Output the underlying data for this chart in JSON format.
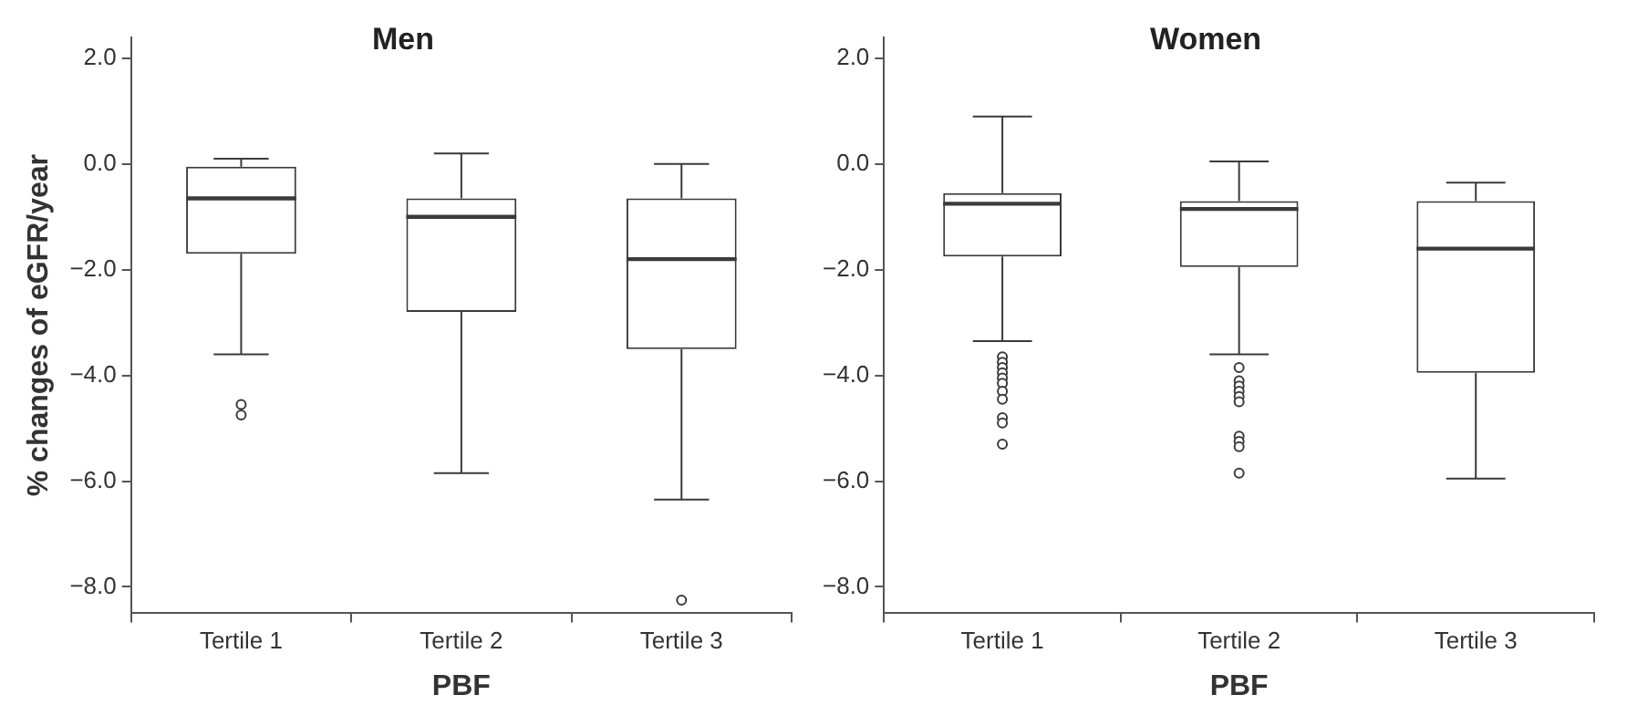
{
  "chart_data": [
    {
      "type": "box",
      "title": "Men",
      "xlabel": "PBF",
      "ylabel": "% changes of eGFR/year",
      "categories": [
        "Tertile 1",
        "Tertile 2",
        "Tertile 3"
      ],
      "ylim": [
        -8.5,
        2.4
      ],
      "yticks": [
        {
          "value": 2,
          "label": "2.0"
        },
        {
          "value": 0,
          "label": "0.0"
        },
        {
          "value": -2,
          "label": "−2.0"
        },
        {
          "value": -4,
          "label": "−4.0"
        },
        {
          "value": -6,
          "label": "−6.0"
        },
        {
          "value": -8,
          "label": "−8.0"
        }
      ],
      "grid": false,
      "legend": false,
      "marker": "circle",
      "color": "#3a3a3a",
      "boxes": [
        {
          "low": -3.6,
          "q1": -1.7,
          "median": -0.65,
          "q3": -0.05,
          "high": 0.1,
          "outliers": [
            -4.55,
            -4.75
          ]
        },
        {
          "low": -5.85,
          "q1": -2.8,
          "median": -1.0,
          "q3": -0.65,
          "high": 0.2
        },
        {
          "low": -6.35,
          "q1": -3.5,
          "median": -1.8,
          "q3": -0.65,
          "high": 0.0,
          "outliers": [
            -8.25
          ]
        }
      ]
    },
    {
      "type": "box",
      "title": "Women",
      "xlabel": "PBF",
      "categories": [
        "Tertile 1",
        "Tertile 2",
        "Tertile 3"
      ],
      "ylim": [
        -8.5,
        2.4
      ],
      "yticks": [
        {
          "value": 2,
          "label": "2.0"
        },
        {
          "value": 0,
          "label": "0.0"
        },
        {
          "value": -2,
          "label": "−2.0"
        },
        {
          "value": -4,
          "label": "−4.0"
        },
        {
          "value": -6,
          "label": "−6.0"
        },
        {
          "value": -8,
          "label": "−8.0"
        }
      ],
      "grid": false,
      "legend": false,
      "marker": "circle",
      "color": "#3a3a3a",
      "boxes": [
        {
          "low": -3.35,
          "q1": -1.75,
          "median": -0.75,
          "q3": -0.55,
          "high": 0.9,
          "outliers": [
            -3.65,
            -3.75,
            -3.85,
            -3.95,
            -4.05,
            -4.15,
            -4.3,
            -4.45,
            -4.8,
            -4.9,
            -5.3
          ]
        },
        {
          "low": -3.6,
          "q1": -1.95,
          "median": -0.85,
          "q3": -0.7,
          "high": 0.05,
          "outliers": [
            -3.85,
            -4.1,
            -4.2,
            -4.3,
            -4.4,
            -4.5,
            -5.15,
            -5.25,
            -5.35,
            -5.85
          ]
        },
        {
          "low": -5.95,
          "q1": -3.95,
          "median": -1.6,
          "q3": -0.7,
          "high": -0.35
        }
      ]
    }
  ]
}
